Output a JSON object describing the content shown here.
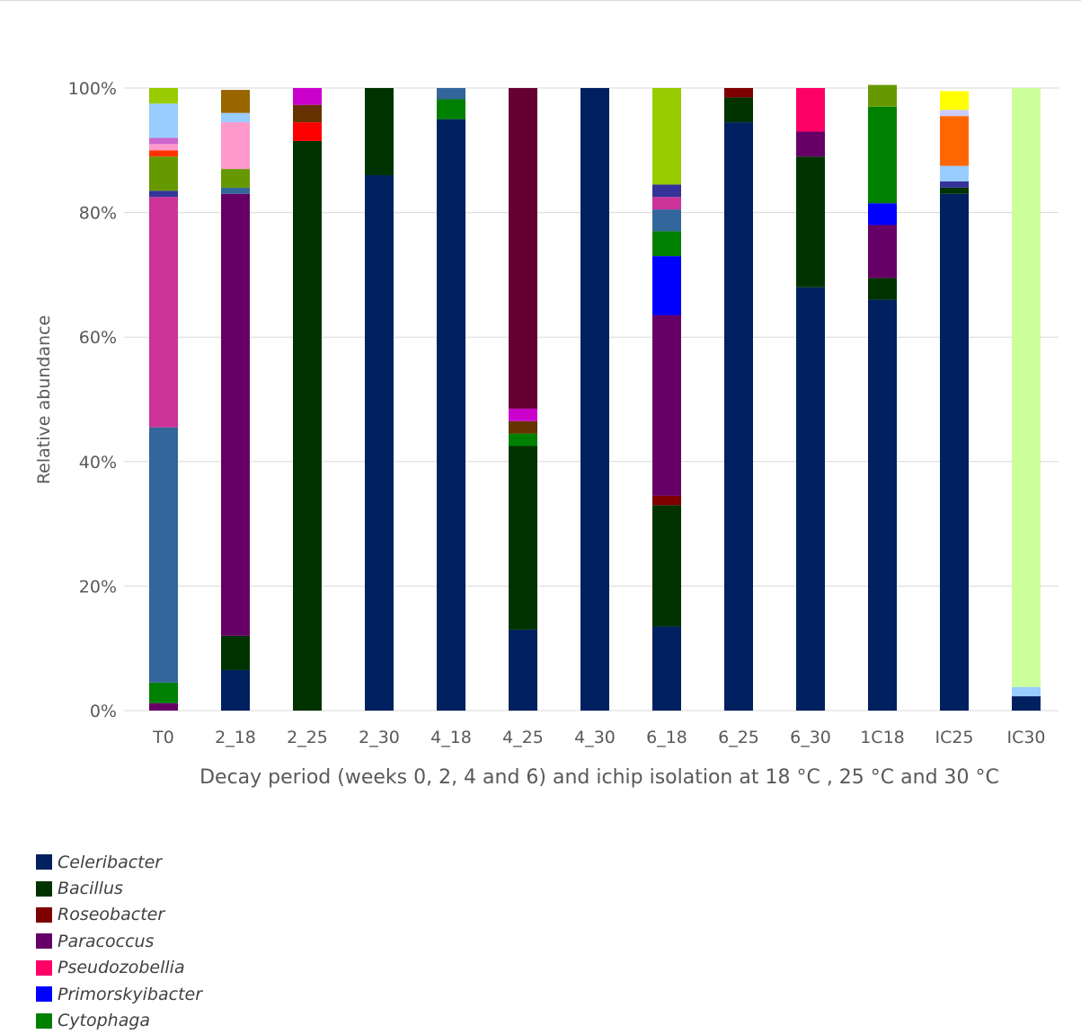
{
  "chart_data": {
    "type": "bar",
    "stacked": true,
    "ylabel": "Relative abundance",
    "xlabel": "Decay period (weeks 0, 2, 4 and 6) and ichip isolation at 18 °C , 25 °C  and 30 °C",
    "ylim": [
      0,
      100
    ],
    "yticks": [
      "0%",
      "20%",
      "40%",
      "60%",
      "80%",
      "100%"
    ],
    "grid": true,
    "legend_position": "bottom-left",
    "categories": [
      "T0",
      "2_18",
      "2_25",
      "2_30",
      "4_18",
      "4_25",
      "4_30",
      "6_18",
      "6_25",
      "6_30",
      "1C18",
      "IC25",
      "IC30"
    ],
    "series": [
      {
        "name": "Celeribacter",
        "color": "#002060",
        "values": [
          0,
          6.5,
          0,
          86,
          95,
          13,
          100,
          13.5,
          94.5,
          68,
          66,
          83,
          2.3
        ]
      },
      {
        "name": "Bacillus",
        "color": "#003300",
        "values": [
          0,
          5.5,
          91.5,
          14,
          0,
          29.5,
          0,
          19.5,
          4,
          21,
          3.5,
          1,
          0
        ]
      },
      {
        "name": "Roseobacter",
        "color": "#7f0000",
        "values": [
          0,
          0,
          0,
          0,
          0,
          0,
          0,
          1.5,
          1.5,
          0,
          0,
          0,
          0
        ]
      },
      {
        "name": "Paracoccus",
        "color": "#660066",
        "values": [
          1.2,
          71,
          0,
          0,
          0,
          0,
          0,
          29,
          0,
          4,
          8.5,
          0,
          0
        ]
      },
      {
        "name": "Pseudozobellia",
        "color": "#ff0066",
        "values": [
          0,
          0,
          0,
          0,
          0,
          0,
          0,
          0,
          0,
          7,
          0,
          0,
          0
        ]
      },
      {
        "name": "Primorskyibacter",
        "color": "#0000ff",
        "values": [
          0,
          0,
          0,
          0,
          0,
          0,
          0,
          9.5,
          0,
          0,
          3.5,
          0,
          0
        ]
      },
      {
        "name": "Cytophaga",
        "color": "#008000",
        "values": [
          3.3,
          0,
          0,
          0,
          3.2,
          2,
          0,
          4,
          0,
          0,
          15.5,
          0,
          0
        ]
      },
      {
        "color": "#33669a",
        "values": [
          41,
          1,
          0,
          0,
          1.8,
          0,
          0,
          3.5,
          0,
          0,
          0,
          0,
          0
        ]
      },
      {
        "color": "#cc3399",
        "values": [
          37,
          0,
          0,
          0,
          0,
          0,
          0,
          2,
          0,
          0,
          0,
          0,
          0
        ]
      },
      {
        "color": "#333399",
        "values": [
          1,
          0,
          0,
          0,
          0,
          0,
          0,
          2,
          0,
          0,
          0,
          1,
          0
        ]
      },
      {
        "color": "#669900",
        "values": [
          5.5,
          3,
          0,
          0,
          0,
          0,
          0,
          0,
          0,
          0,
          3.5,
          0,
          0
        ]
      },
      {
        "color": "#ff3300",
        "values": [
          1,
          0,
          0,
          0,
          0,
          0,
          0,
          0,
          0,
          0,
          0,
          0,
          0
        ]
      },
      {
        "color": "#ff99cc",
        "values": [
          1,
          7.5,
          0,
          0,
          0,
          0,
          0,
          0,
          0,
          0,
          0,
          0,
          0
        ]
      },
      {
        "color": "#cc66cc",
        "values": [
          1,
          0,
          0,
          0,
          0,
          0,
          0,
          0,
          0,
          0,
          0,
          0,
          0
        ]
      },
      {
        "color": "#99ccff",
        "values": [
          5.5,
          1.5,
          0,
          0,
          0,
          0,
          0,
          0,
          0,
          0,
          0,
          2.5,
          1.5
        ]
      },
      {
        "color": "#99cc00",
        "values": [
          2.5,
          0,
          0,
          0,
          0,
          0,
          0,
          15.5,
          0,
          0,
          0,
          0,
          0
        ]
      },
      {
        "color": "#996600",
        "values": [
          0,
          3.7,
          0,
          0,
          0,
          0,
          0,
          0,
          0,
          0,
          0,
          0,
          0
        ]
      },
      {
        "color": "#ff0000",
        "values": [
          0,
          0,
          3,
          0,
          0,
          0,
          0,
          0,
          0,
          0,
          0,
          0,
          0
        ]
      },
      {
        "color": "#663300",
        "values": [
          0,
          0,
          2.8,
          0,
          0,
          2,
          0,
          0,
          0,
          0,
          0,
          0,
          0
        ]
      },
      {
        "color": "#cc00cc",
        "values": [
          0,
          0,
          2.7,
          0,
          0,
          2,
          0,
          0,
          0,
          0,
          0,
          0,
          0
        ]
      },
      {
        "color": "#660033",
        "values": [
          0,
          0,
          0,
          0,
          0,
          51.5,
          0,
          0,
          0,
          0,
          0,
          0,
          0
        ]
      },
      {
        "color": "#ff6600",
        "values": [
          0,
          0,
          0,
          0,
          0,
          0,
          0,
          0,
          0,
          0,
          0,
          8,
          0
        ]
      },
      {
        "color": "#ccccff",
        "values": [
          0,
          0,
          0,
          0,
          0,
          0,
          0,
          0,
          0,
          0,
          0,
          1,
          0
        ]
      },
      {
        "color": "#ffff00",
        "values": [
          0,
          0,
          0,
          0,
          0,
          0,
          0,
          0,
          0,
          0,
          0,
          3,
          0
        ]
      },
      {
        "color": "#ccff99",
        "values": [
          0,
          0,
          0,
          0,
          0,
          0,
          0,
          0,
          0,
          0,
          0,
          0,
          96.2
        ]
      }
    ]
  }
}
